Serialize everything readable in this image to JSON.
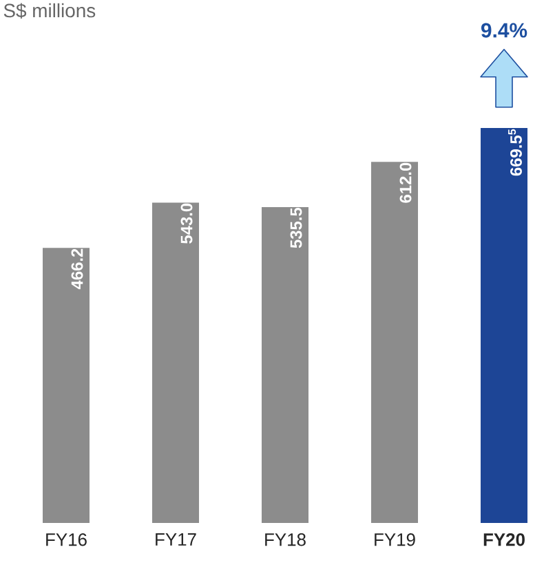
{
  "chart_data": {
    "type": "bar",
    "categories": [
      "FY16",
      "FY17",
      "FY18",
      "FY19",
      "**FY20**"
    ],
    "values": [
      466.2,
      543.0,
      535.5,
      612.0,
      669.5
    ],
    "value_labels": [
      "466.2",
      "543.0",
      "535.5",
      "612.0",
      "669.5$^{5}$"
    ],
    "colors": [
      "#8c8c8c",
      "#8c8c8c",
      "#8c8c8c",
      "#8c8c8c",
      "#1d4596"
    ],
    "annotations": [
      "S$ millions",
      "9.4%"
    ]
  }
}
